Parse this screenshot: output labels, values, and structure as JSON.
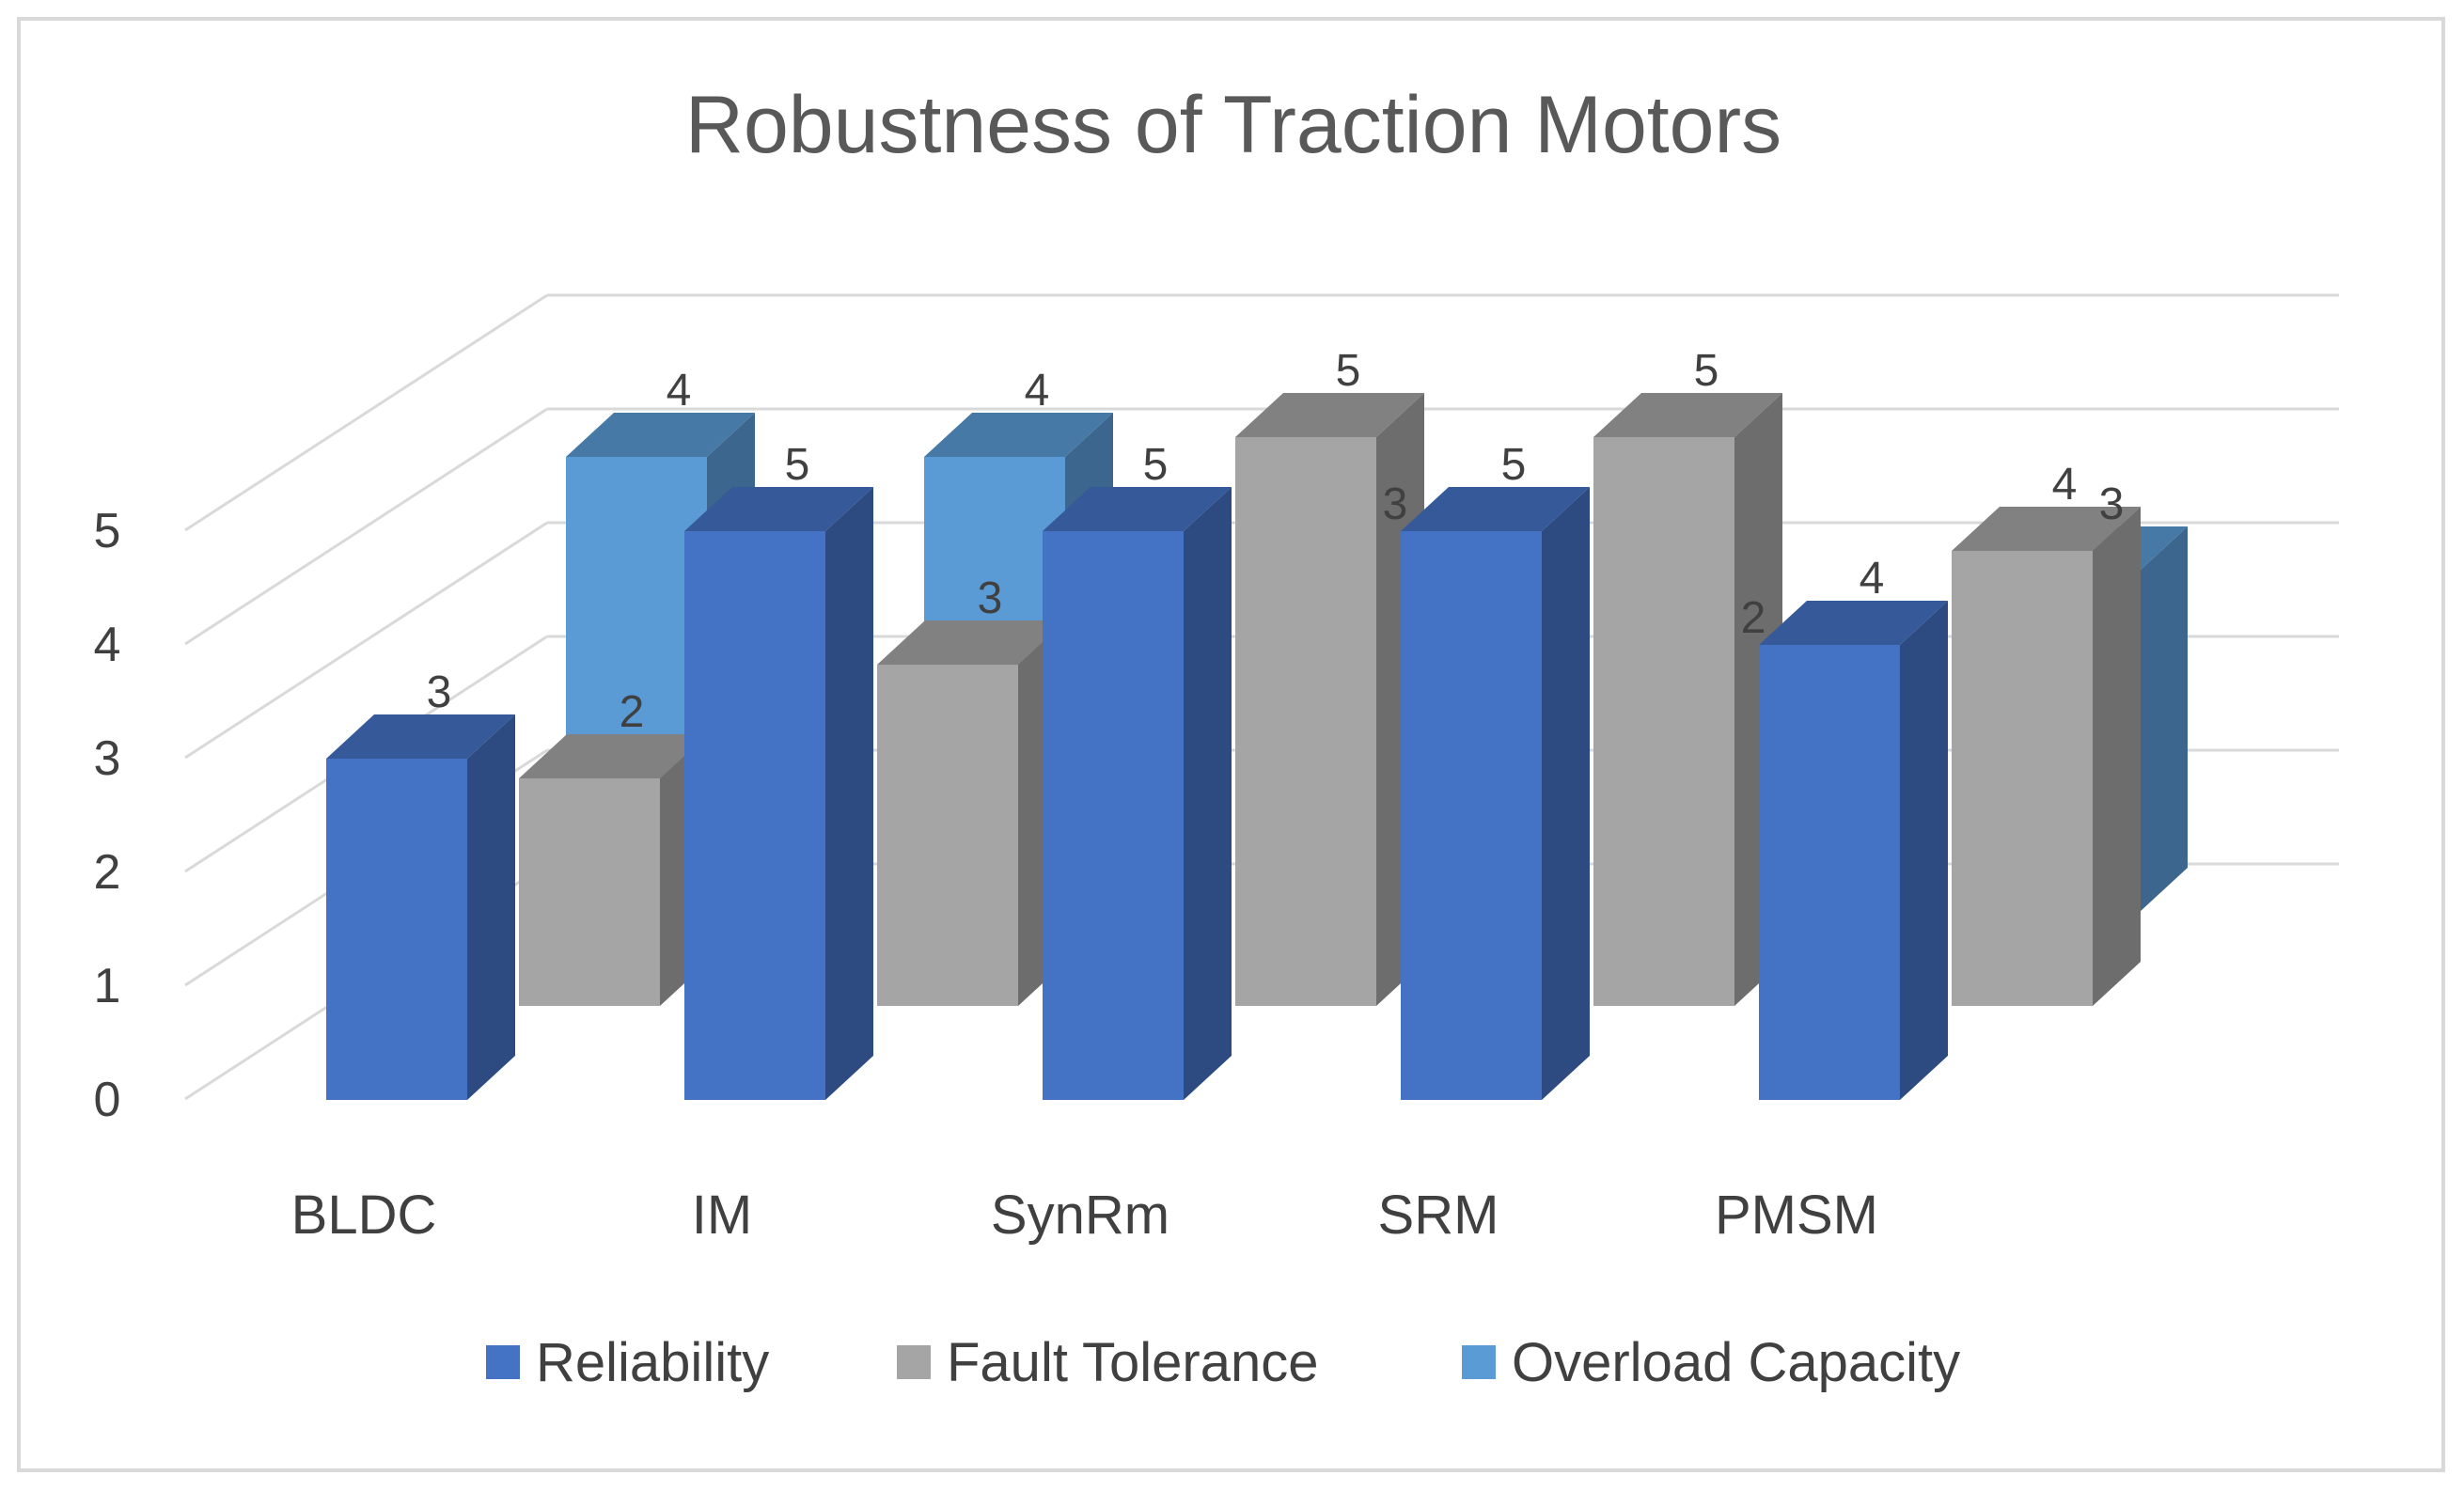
{
  "chart_data": {
    "type": "bar",
    "subtype": "3d-column",
    "title": "Robustness of Traction Motors",
    "categories": [
      "BLDC",
      "IM",
      "SynRm",
      "SRM",
      "PMSM"
    ],
    "series": [
      {
        "name": "Reliability",
        "values": [
          3,
          5,
          5,
          5,
          4
        ],
        "color": "#4472C4"
      },
      {
        "name": "Fault Tolerance",
        "values": [
          2,
          3,
          5,
          5,
          4
        ],
        "color": "#A5A5A5"
      },
      {
        "name": "Overload Capacity",
        "values": [
          4,
          4,
          3,
          2,
          3
        ],
        "color": "#5B9BD5"
      }
    ],
    "y_ticks": [
      "0",
      "1",
      "2",
      "3",
      "4",
      "5"
    ],
    "ylim": [
      0,
      5
    ],
    "grid": true,
    "legend_position": "bottom",
    "data_labels": true
  }
}
